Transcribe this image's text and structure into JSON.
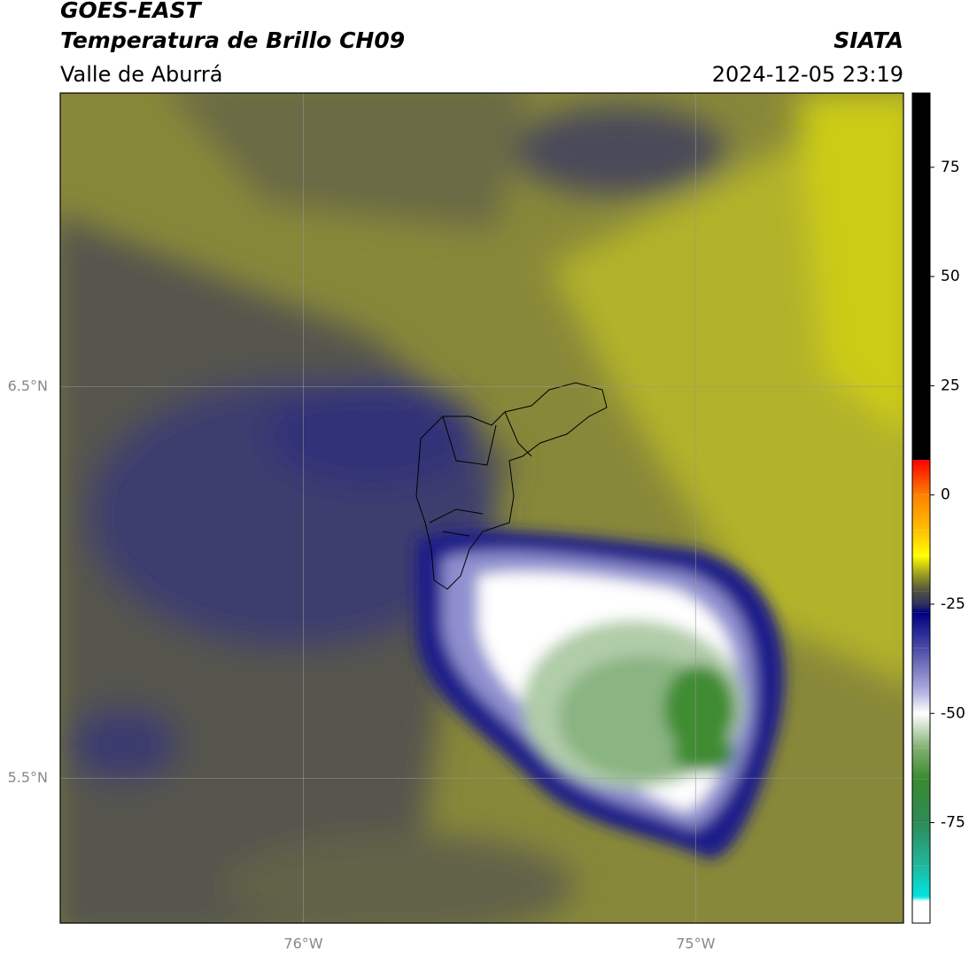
{
  "chart_data": {
    "type": "map",
    "title": "GOES-EAST",
    "subtitle": "Temperatura de Brillo CH09",
    "region": "Valle de Aburrá",
    "source": "SIATA",
    "datetime": "2024-12-05 23:19",
    "xlim": [
      -76.62,
      -74.47
    ],
    "ylim": [
      5.13,
      7.25
    ],
    "xticks": [
      {
        "value": -76,
        "label": "76°W"
      },
      {
        "value": -75,
        "label": "75°W"
      }
    ],
    "yticks": [
      {
        "value": 6.5,
        "label": "6.5°N"
      },
      {
        "value": 5.5,
        "label": "5.5°N"
      }
    ],
    "grid": true,
    "colorbar": {
      "lim": [
        -98,
        92
      ],
      "ticks": [
        75,
        50,
        25,
        0,
        -25,
        -50,
        -75
      ],
      "stops": [
        {
          "value": -98,
          "color": "#ffffff"
        },
        {
          "value": -93,
          "color": "#ffffff"
        },
        {
          "value": -92,
          "color": "#00e5e0"
        },
        {
          "value": -85,
          "color": "#20b8a0"
        },
        {
          "value": -75,
          "color": "#2e8b57"
        },
        {
          "value": -65,
          "color": "#3a8a30"
        },
        {
          "value": -58,
          "color": "#80b070"
        },
        {
          "value": -50,
          "color": "#ffffff"
        },
        {
          "value": -45,
          "color": "#b0b0e0"
        },
        {
          "value": -35,
          "color": "#4a4aa8"
        },
        {
          "value": -27,
          "color": "#000080"
        },
        {
          "value": -25,
          "color": "#303060"
        },
        {
          "value": -22,
          "color": "#505040"
        },
        {
          "value": -18,
          "color": "#a0a020"
        },
        {
          "value": -14,
          "color": "#ffff00"
        },
        {
          "value": -8,
          "color": "#ffc000"
        },
        {
          "value": 0,
          "color": "#ff8000"
        },
        {
          "value": 8,
          "color": "#ff0000"
        },
        {
          "value": 8,
          "color": "#000000"
        },
        {
          "value": 92,
          "color": "#000000"
        }
      ]
    }
  }
}
